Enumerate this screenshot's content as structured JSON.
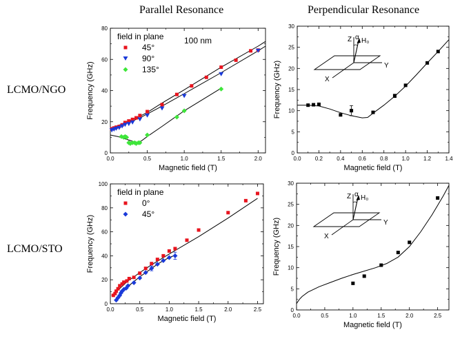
{
  "column_titles": [
    "Parallel Resonance",
    "Perpendicular Resonance"
  ],
  "row_labels": [
    "LCMO/NGO",
    "LCMO/STO"
  ],
  "chart_data": [
    {
      "type": "scatter",
      "id": "ngo-parallel",
      "xlabel": "Magnetic field (T)",
      "ylabel": "Frequency (GHz)",
      "xlim": [
        0,
        2.1
      ],
      "ylim": [
        0,
        80
      ],
      "xticks": [
        0.0,
        0.5,
        1.0,
        1.5,
        2.0
      ],
      "xtick_labels": [
        "0.0",
        "0.5",
        "1.0",
        "1.5",
        "2.0"
      ],
      "yticks": [
        0,
        20,
        40,
        60,
        80
      ],
      "ytick_labels": [
        "0",
        "20",
        "40",
        "60",
        "80"
      ],
      "legend_title": "field in plane",
      "annotation": "100 nm",
      "series": [
        {
          "name": "45°",
          "marker": "square",
          "color": "#e8141e",
          "x": [
            0.02,
            0.05,
            0.08,
            0.12,
            0.16,
            0.2,
            0.25,
            0.3,
            0.35,
            0.4,
            0.5,
            0.7,
            0.9,
            1.1,
            1.3,
            1.5,
            1.7,
            1.9,
            2.0
          ],
          "y": [
            15.5,
            16,
            16.5,
            17,
            18,
            19.5,
            20.5,
            21.5,
            22.5,
            24,
            26.5,
            31,
            37.5,
            43,
            48.5,
            55,
            59.5,
            65.5,
            66
          ]
        },
        {
          "name": "90°",
          "marker": "triangle-down",
          "color": "#1a3ad9",
          "x": [
            0.02,
            0.05,
            0.08,
            0.12,
            0.16,
            0.2,
            0.25,
            0.3,
            0.4,
            0.5,
            0.7,
            1.0,
            1.5,
            2.0
          ],
          "y": [
            14.5,
            15,
            15.5,
            16,
            17,
            18,
            18.5,
            19.5,
            21.5,
            24,
            28.5,
            36.5,
            50.5,
            65.5
          ]
        },
        {
          "name": "135°",
          "marker": "diamond",
          "color": "#3ee63a",
          "x": [
            0.15,
            0.18,
            0.2,
            0.22,
            0.25,
            0.27,
            0.3,
            0.33,
            0.35,
            0.38,
            0.4,
            0.5,
            0.9,
            1.0,
            1.5
          ],
          "y": [
            10.5,
            10,
            10.5,
            10,
            6.5,
            6,
            6.5,
            6.5,
            6,
            6.5,
            6.5,
            11.5,
            23,
            27,
            41
          ]
        }
      ],
      "fit_curves": [
        {
          "x": [
            0,
            0.1,
            0.2,
            0.3,
            0.4,
            0.5,
            0.7,
            1.0,
            1.5,
            2.0,
            2.1
          ],
          "y": [
            14.5,
            16.5,
            18.5,
            20.5,
            22.5,
            25,
            30,
            38,
            51.5,
            65.5,
            68.5
          ]
        },
        {
          "x": [
            0,
            0.1,
            0.2,
            0.3,
            0.4,
            0.5,
            0.7,
            1.0,
            1.5,
            2.0,
            2.1
          ],
          "y": [
            15.5,
            17.5,
            19.5,
            21.5,
            23.5,
            26,
            32,
            40.5,
            55,
            68.5,
            71.5
          ]
        },
        {
          "x": [
            0,
            0.1,
            0.2,
            0.3,
            0.35,
            0.4,
            0.5,
            0.7,
            1.0,
            1.5
          ],
          "y": [
            11.5,
            10.5,
            9,
            7.5,
            6.5,
            7,
            10.5,
            17,
            27,
            41.5
          ]
        }
      ]
    },
    {
      "type": "scatter",
      "id": "ngo-perpendicular",
      "xlabel": "Magnetic field (T)",
      "ylabel": "Frequency (GHz)",
      "xlim": [
        0,
        1.4
      ],
      "ylim": [
        0,
        30
      ],
      "xticks": [
        0.0,
        0.2,
        0.4,
        0.6,
        0.8,
        1.0,
        1.2,
        1.4
      ],
      "xtick_labels": [
        "0.0",
        "0.2",
        "0.4",
        "0.6",
        "0.8",
        "1.0",
        "1.2",
        "1.4"
      ],
      "yticks": [
        0,
        5,
        10,
        15,
        20,
        25,
        30
      ],
      "ytick_labels": [
        "0",
        "5",
        "10",
        "15",
        "20",
        "25",
        "30"
      ],
      "inset_labels": {
        "z": "Z",
        "alpha": "α",
        "h": "H₀",
        "y": "Y",
        "x": "X"
      },
      "series": [
        {
          "name": "",
          "marker": "square",
          "color": "#000000",
          "x": [
            0.1,
            0.15,
            0.2,
            0.4,
            0.5,
            0.7,
            0.9,
            1.0,
            1.2,
            1.3
          ],
          "y": [
            11.3,
            11.4,
            11.5,
            9.0,
            10.0,
            9.6,
            13.5,
            16.0,
            21.3,
            24.0
          ],
          "yerr": [
            0,
            0,
            0,
            0,
            1.2,
            0,
            0.4,
            0,
            0,
            0
          ]
        }
      ],
      "fit_curves": [
        {
          "x": [
            0,
            0.1,
            0.2,
            0.3,
            0.4,
            0.5,
            0.6,
            0.65,
            0.7,
            0.8,
            0.9,
            1.0,
            1.1,
            1.2,
            1.3,
            1.4
          ],
          "y": [
            11.3,
            11.3,
            11.1,
            10.4,
            9.5,
            8.8,
            8.3,
            8.4,
            9.4,
            11.3,
            13.4,
            15.8,
            18.5,
            21.3,
            24.0,
            26.8
          ]
        }
      ]
    },
    {
      "type": "scatter",
      "id": "sto-parallel",
      "xlabel": "Magnetic field (T)",
      "ylabel": "Frequency (GHz)",
      "xlim": [
        0,
        2.6
      ],
      "ylim": [
        0,
        100
      ],
      "xticks": [
        0.0,
        0.5,
        1.0,
        1.5,
        2.0,
        2.5
      ],
      "xtick_labels": [
        "0.0",
        "0.5",
        "1.0",
        "1.5",
        "2.0",
        "2.5"
      ],
      "yticks": [
        0,
        20,
        40,
        60,
        80,
        100
      ],
      "ytick_labels": [
        "0",
        "20",
        "40",
        "60",
        "80",
        "100"
      ],
      "legend_title": "field in plane",
      "series": [
        {
          "name": "0°",
          "marker": "square",
          "color": "#e8141e",
          "x": [
            0.05,
            0.08,
            0.1,
            0.13,
            0.16,
            0.2,
            0.23,
            0.28,
            0.32,
            0.4,
            0.5,
            0.6,
            0.7,
            0.8,
            0.9,
            1.0,
            1.1,
            1.3,
            1.5,
            2.0,
            2.3,
            2.5
          ],
          "y": [
            7,
            8.5,
            10.5,
            12.5,
            15,
            16.5,
            18,
            19,
            21,
            22,
            25.5,
            29.5,
            33.5,
            37,
            40,
            44,
            46,
            53,
            61.5,
            76,
            86,
            92
          ]
        },
        {
          "name": "45°",
          "marker": "diamond",
          "color": "#1a3ad9",
          "x": [
            0.1,
            0.13,
            0.16,
            0.18,
            0.2,
            0.23,
            0.27,
            0.3,
            0.4,
            0.5,
            0.6,
            0.7,
            0.8,
            0.9,
            1.0,
            1.1
          ],
          "y": [
            3,
            5,
            7,
            9,
            10.5,
            12,
            13,
            15,
            17.5,
            21.5,
            26,
            29.5,
            33,
            36,
            38.5,
            40
          ],
          "yerr": [
            0,
            0,
            0,
            0,
            0,
            0,
            0,
            0,
            0,
            0,
            0,
            2,
            0,
            0,
            0,
            3
          ]
        }
      ],
      "fit_curves": [
        {
          "x": [
            0.02,
            0.1,
            0.2,
            0.3,
            0.4,
            0.5,
            0.7,
            1.0,
            1.5,
            2.0,
            2.5
          ],
          "y": [
            7,
            10,
            14.5,
            19,
            22.5,
            26,
            32.5,
            41.5,
            56,
            71.5,
            88
          ]
        },
        {
          "x": [
            0.1,
            0.2,
            0.3,
            0.4,
            0.5,
            0.6,
            0.7,
            0.8,
            0.9,
            1.0,
            1.1
          ],
          "y": [
            4,
            10,
            14.5,
            18.5,
            22.5,
            26,
            29.5,
            33,
            36,
            38.5,
            40.5
          ]
        }
      ]
    },
    {
      "type": "scatter",
      "id": "sto-perpendicular",
      "xlabel": "Magnetic field (T)",
      "ylabel": "Frequency (GHz)",
      "xlim": [
        0,
        2.7
      ],
      "ylim": [
        0,
        30
      ],
      "xticks": [
        0.0,
        0.5,
        1.0,
        1.5,
        2.0,
        2.5
      ],
      "xtick_labels": [
        "0.0",
        "0.5",
        "1.0",
        "1.5",
        "2.0",
        "2.5"
      ],
      "yticks": [
        0,
        5,
        10,
        15,
        20,
        25,
        30
      ],
      "ytick_labels": [
        "0",
        "5",
        "10",
        "15",
        "20",
        "25",
        "30"
      ],
      "inset_labels": {
        "z": "Z",
        "alpha": "α",
        "h": "H₀",
        "y": "Y",
        "x": "X"
      },
      "series": [
        {
          "name": "",
          "marker": "square",
          "color": "#000000",
          "x": [
            1.0,
            1.2,
            1.5,
            1.8,
            2.0,
            2.5
          ],
          "y": [
            6.3,
            8.0,
            10.6,
            13.6,
            16.0,
            26.5
          ]
        }
      ],
      "fit_curves": [
        {
          "x": [
            0.0,
            0.05,
            0.1,
            0.2,
            0.4,
            0.6,
            0.8,
            1.0,
            1.2,
            1.4,
            1.6,
            1.8,
            2.0,
            2.2,
            2.4,
            2.6,
            2.7
          ],
          "y": [
            1.5,
            2.5,
            3.2,
            4.2,
            5.5,
            6.5,
            7.5,
            8.4,
            9.2,
            10.0,
            11.0,
            12.5,
            15.0,
            18.5,
            22.5,
            27.0,
            29.5
          ]
        }
      ]
    }
  ]
}
